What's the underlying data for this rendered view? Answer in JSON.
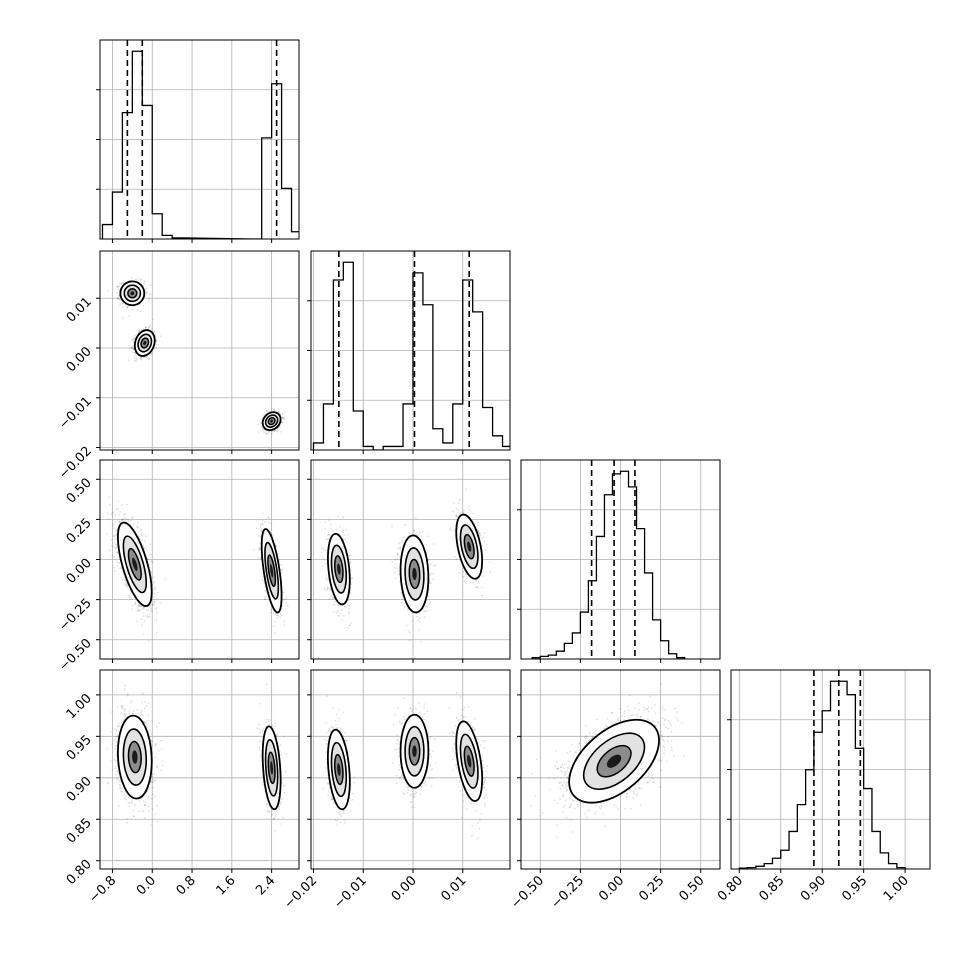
{
  "chart_data": {
    "type": "corner",
    "parameters": [
      {
        "ticks": [
          -0.8,
          0.0,
          0.8,
          1.6,
          2.4
        ],
        "tick_labels": [
          "−0.8",
          "0.0",
          "0.8",
          "1.6",
          "2.4"
        ],
        "range": [
          -1.05,
          2.95
        ]
      },
      {
        "ticks": [
          -0.02,
          -0.01,
          0.0,
          0.01
        ],
        "tick_labels": [
          "−0.02",
          "−0.01",
          "0.00",
          "0.01"
        ],
        "range": [
          -0.0205,
          0.0195
        ]
      },
      {
        "ticks": [
          -0.5,
          -0.25,
          0.0,
          0.25,
          0.5
        ],
        "tick_labels": [
          "−0.50",
          "−0.25",
          "0.00",
          "0.25",
          "0.50"
        ],
        "range": [
          -0.62,
          0.62
        ]
      },
      {
        "ticks": [
          0.8,
          0.85,
          0.9,
          0.95,
          1.0
        ],
        "tick_labels": [
          "0.80",
          "0.85",
          "0.90",
          "0.95",
          "1.00"
        ],
        "range": [
          0.79,
          1.03
        ]
      }
    ],
    "histograms": [
      {
        "bin_width": 0.2,
        "x": [
          -1.0,
          -0.8,
          -0.6,
          -0.4,
          -0.2,
          0.0,
          0.2,
          0.4,
          2.0,
          2.2,
          2.4,
          2.6,
          2.8
        ],
        "counts": [
          4,
          13,
          35,
          52,
          37,
          7,
          1,
          0.3,
          0,
          28,
          43,
          14,
          2
        ],
        "quantiles": [
          -0.5,
          -0.2,
          2.5
        ]
      },
      {
        "bin_width": 0.002,
        "x": [
          -0.02,
          -0.018,
          -0.016,
          -0.014,
          -0.012,
          -0.01,
          -0.008,
          -0.006,
          -0.004,
          -0.002,
          0.0,
          0.002,
          0.004,
          0.006,
          0.008,
          0.01,
          0.012,
          0.014,
          0.016,
          0.018
        ],
        "counts": [
          2,
          13,
          48,
          53,
          11,
          1,
          0,
          1,
          1,
          13,
          50,
          41,
          6,
          2,
          13,
          48,
          39,
          12,
          4,
          1
        ],
        "quantiles": [
          -0.0149,
          0.0003,
          0.0113
        ]
      },
      {
        "bin_width": 0.05,
        "x": [
          -0.55,
          -0.5,
          -0.45,
          -0.4,
          -0.35,
          -0.3,
          -0.25,
          -0.2,
          -0.15,
          -0.1,
          -0.05,
          0.0,
          0.05,
          0.1,
          0.15,
          0.2,
          0.25,
          0.3,
          0.35
        ],
        "counts": [
          0.5,
          1,
          1.5,
          3,
          6,
          10,
          18,
          30,
          47,
          63,
          71,
          72,
          66,
          50,
          33,
          15,
          7,
          2,
          0.5
        ],
        "quantiles": [
          -0.18,
          -0.04,
          0.09
        ]
      },
      {
        "bin_width": 0.01,
        "x": [
          0.8,
          0.81,
          0.82,
          0.83,
          0.84,
          0.85,
          0.86,
          0.87,
          0.88,
          0.89,
          0.9,
          0.91,
          0.92,
          0.93,
          0.94,
          0.95,
          0.96,
          0.97,
          0.98,
          0.99
        ],
        "counts": [
          0.3,
          0.5,
          1,
          2,
          4,
          7,
          14,
          24,
          37,
          51,
          59,
          70,
          70,
          65,
          45,
          30,
          14,
          6,
          2,
          0.5
        ],
        "quantiles": [
          0.89,
          0.92,
          0.946
        ]
      }
    ],
    "blobs": [
      {
        "row": 1,
        "col": 0,
        "cx": -0.4,
        "cy": 0.011,
        "sx": 0.12,
        "sy": 0.0012,
        "rho": 0.0,
        "n": 700
      },
      {
        "row": 1,
        "col": 0,
        "cx": -0.15,
        "cy": 0.001,
        "sx": 0.1,
        "sy": 0.0013,
        "rho": 0.2,
        "n": 700
      },
      {
        "row": 1,
        "col": 0,
        "cx": 2.4,
        "cy": -0.0147,
        "sx": 0.09,
        "sy": 0.0009,
        "rho": 0.2,
        "n": 650
      },
      {
        "row": 2,
        "col": 0,
        "cx": -0.35,
        "cy": -0.03,
        "sx": 0.17,
        "sy": 0.13,
        "rho": -0.65,
        "n": 1400
      },
      {
        "row": 2,
        "col": 0,
        "cx": 2.4,
        "cy": -0.07,
        "sx": 0.1,
        "sy": 0.13,
        "rho": -0.6,
        "n": 700
      },
      {
        "row": 2,
        "col": 1,
        "cx": -0.0149,
        "cy": -0.06,
        "sx": 0.0011,
        "sy": 0.11,
        "rho": -0.3,
        "n": 700
      },
      {
        "row": 2,
        "col": 1,
        "cx": 0.0003,
        "cy": -0.09,
        "sx": 0.0014,
        "sy": 0.12,
        "rho": -0.1,
        "n": 700
      },
      {
        "row": 2,
        "col": 1,
        "cx": 0.0113,
        "cy": 0.08,
        "sx": 0.0013,
        "sy": 0.1,
        "rho": -0.45,
        "n": 700
      },
      {
        "row": 3,
        "col": 0,
        "cx": -0.35,
        "cy": 0.925,
        "sx": 0.17,
        "sy": 0.025,
        "rho": -0.1,
        "n": 1400
      },
      {
        "row": 3,
        "col": 0,
        "cx": 2.4,
        "cy": 0.912,
        "sx": 0.09,
        "sy": 0.025,
        "rho": -0.3,
        "n": 700
      },
      {
        "row": 3,
        "col": 1,
        "cx": -0.0149,
        "cy": 0.91,
        "sx": 0.0011,
        "sy": 0.024,
        "rho": -0.3,
        "n": 700
      },
      {
        "row": 3,
        "col": 1,
        "cx": 0.0003,
        "cy": 0.932,
        "sx": 0.0014,
        "sy": 0.022,
        "rho": 0.0,
        "n": 700
      },
      {
        "row": 3,
        "col": 1,
        "cx": 0.0113,
        "cy": 0.92,
        "sx": 0.0013,
        "sy": 0.024,
        "rho": -0.45,
        "n": 700
      },
      {
        "row": 3,
        "col": 2,
        "cx": -0.04,
        "cy": 0.92,
        "sx": 0.14,
        "sy": 0.025,
        "rho": 0.5,
        "n": 2000
      }
    ],
    "grid": true,
    "title": "",
    "xlabel": "",
    "ylabel": ""
  }
}
